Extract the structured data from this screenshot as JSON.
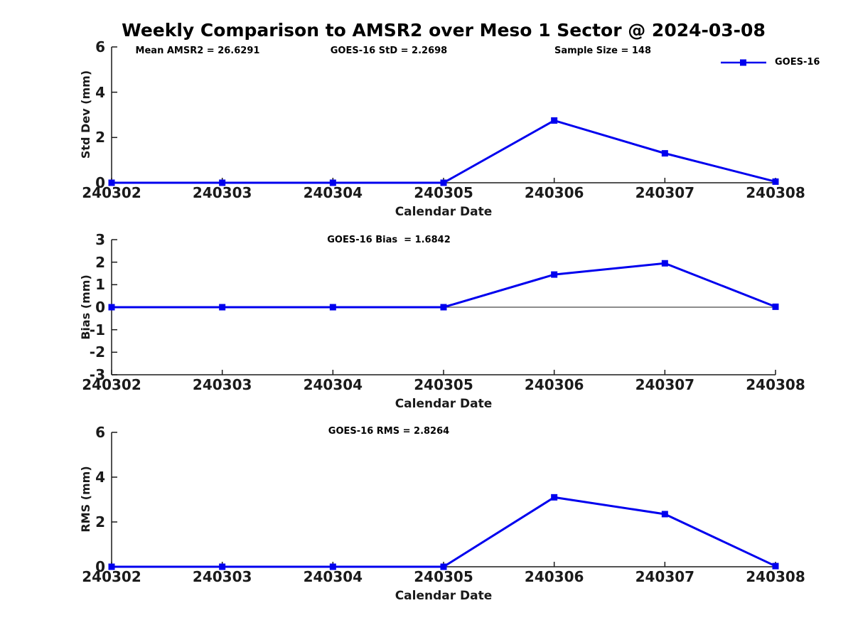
{
  "title": "Weekly Comparison to AMSR2 over Meso 1 Sector @ 2024-03-08",
  "legend": {
    "label": "GOES-16"
  },
  "colors": {
    "line": "#0000EE",
    "axis": "#1a1a1a",
    "text": "#000000",
    "background": "#FFFFFF"
  },
  "chart_data": [
    {
      "type": "line",
      "ylabel": "Std Dev (mm)",
      "xlabel": "Calendar Date",
      "annotations": [
        "Mean AMSR2 = 26.6291",
        "GOES-16 StD = 2.2698",
        "Sample Size = 148"
      ],
      "categories": [
        "240302",
        "240303",
        "240304",
        "240305",
        "240306",
        "240307",
        "240308"
      ],
      "series": [
        {
          "name": "GOES-16",
          "values": [
            0,
            0,
            0,
            0,
            2.75,
            1.3,
            0.05
          ]
        }
      ],
      "ylim": [
        0,
        6
      ],
      "yticks": [
        0,
        2,
        4,
        6
      ],
      "grid": false,
      "legend_position": "top-right-outside"
    },
    {
      "type": "line",
      "ylabel": "Bias (mm)",
      "xlabel": "Calendar Date",
      "annotations": [
        "GOES-16 Bias  = 1.6842"
      ],
      "categories": [
        "240302",
        "240303",
        "240304",
        "240305",
        "240306",
        "240307",
        "240308"
      ],
      "series": [
        {
          "name": "GOES-16",
          "values": [
            0,
            0,
            0,
            0,
            1.45,
            1.95,
            0.02
          ]
        }
      ],
      "ylim": [
        -3,
        3
      ],
      "yticks": [
        -3,
        -2,
        -1,
        0,
        1,
        2,
        3
      ],
      "zero_line": true,
      "grid": false
    },
    {
      "type": "line",
      "ylabel": "RMS (mm)",
      "xlabel": "Calendar Date",
      "annotations": [
        "GOES-16 RMS = 2.8264"
      ],
      "categories": [
        "240302",
        "240303",
        "240304",
        "240305",
        "240306",
        "240307",
        "240308"
      ],
      "series": [
        {
          "name": "GOES-16",
          "values": [
            0,
            0,
            0,
            0,
            3.1,
            2.35,
            0.03
          ]
        }
      ],
      "ylim": [
        0,
        6
      ],
      "yticks": [
        0,
        2,
        4,
        6
      ],
      "grid": false
    }
  ]
}
